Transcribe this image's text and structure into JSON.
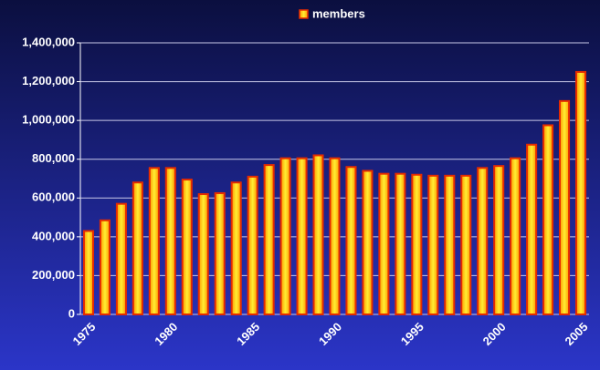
{
  "chart_data": {
    "type": "bar",
    "categories": [
      "1975",
      null,
      null,
      null,
      null,
      "1980",
      null,
      null,
      null,
      null,
      "1985",
      null,
      null,
      null,
      null,
      "1990",
      null,
      null,
      null,
      null,
      "1995",
      null,
      null,
      null,
      null,
      "2000",
      null,
      null,
      null,
      null,
      "2005"
    ],
    "series": [
      {
        "name": "members",
        "color": "#ff9900",
        "values": [
          430000,
          485000,
          570000,
          680000,
          755000,
          755000,
          695000,
          620000,
          625000,
          680000,
          710000,
          770000,
          805000,
          805000,
          820000,
          805000,
          760000,
          740000,
          725000,
          725000,
          720000,
          715000,
          715000,
          715000,
          755000,
          765000,
          805000,
          875000,
          975000,
          1100000,
          1250000
        ]
      }
    ],
    "ylim": [
      0,
      1400000
    ],
    "yticks": [
      0,
      {
        "value": 200000,
        "label": "200,000"
      },
      {
        "value": 400000,
        "label": "400,000"
      },
      {
        "value": 600000,
        "label": "600,000"
      },
      {
        "value": 800000,
        "label": "800,000"
      },
      {
        "value": 1000000,
        "label": "1,000,000"
      },
      {
        "value": 1200000,
        "label": "1,200,000"
      },
      {
        "value": 1400000,
        "label": "1,400,000"
      }
    ],
    "grid": true,
    "legend": "top"
  }
}
